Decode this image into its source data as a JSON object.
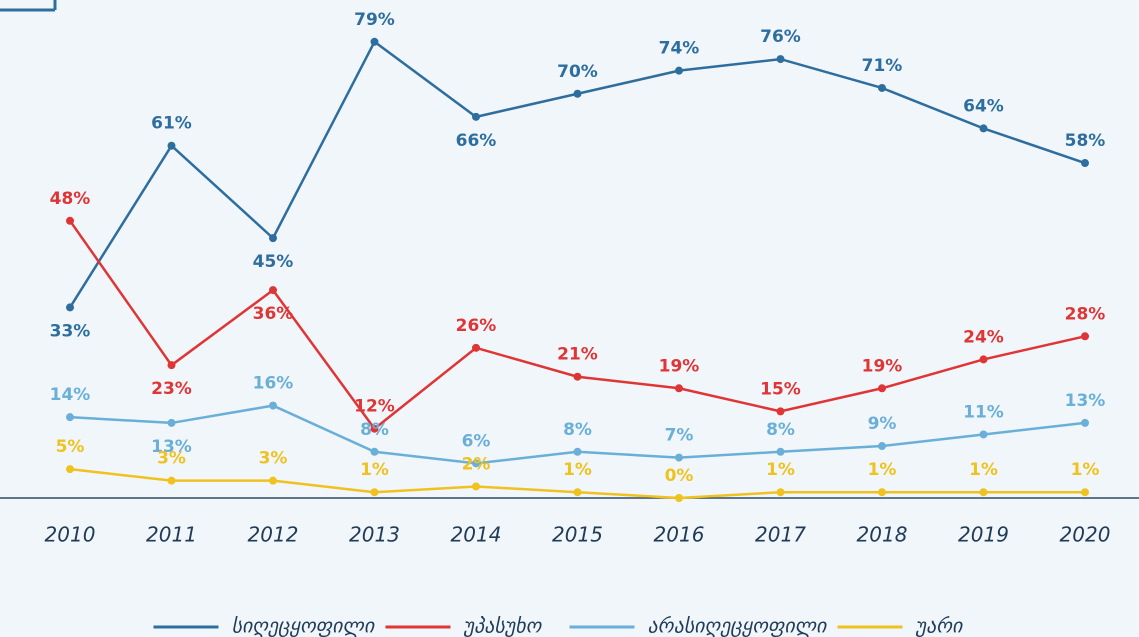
{
  "chart_data": {
    "type": "line",
    "categories": [
      "2010",
      "2011",
      "2012",
      "2013",
      "2014",
      "2015",
      "2016",
      "2017",
      "2018",
      "2019",
      "2020"
    ],
    "ylim": [
      0,
      80
    ],
    "series": [
      {
        "name": "სიღეცყოფილი",
        "color": "#2e6e9e",
        "values": [
          33,
          61,
          45,
          79,
          66,
          70,
          74,
          76,
          71,
          64,
          58
        ],
        "value_labels": [
          "33%",
          "61%",
          "45%",
          "79%",
          "66%",
          "70%",
          "74%",
          "76%",
          "71%",
          "64%",
          "58%"
        ]
      },
      {
        "name": "უპასუხო",
        "color": "#e03535",
        "values": [
          48,
          23,
          36,
          12,
          26,
          21,
          19,
          15,
          19,
          24,
          28
        ],
        "value_labels": [
          "48%",
          "23%",
          "36%",
          "12%",
          "26%",
          "21%",
          "19%",
          "15%",
          "19%",
          "24%",
          "28%"
        ]
      },
      {
        "name": "არასიღეცყოფილი",
        "color": "#6aafd8",
        "values": [
          14,
          13,
          16,
          8,
          6,
          8,
          7,
          8,
          9,
          11,
          13
        ],
        "value_labels": [
          "14%",
          "13%",
          "16%",
          "8%",
          "6%",
          "8%",
          "7%",
          "8%",
          "9%",
          "11%",
          "13%"
        ]
      },
      {
        "name": "უარი",
        "color": "#efc21e",
        "values": [
          5,
          3,
          3,
          1,
          2,
          1,
          0,
          1,
          1,
          1,
          1
        ],
        "value_labels": [
          "5%",
          "3%",
          "3%",
          "1%",
          "2%",
          "1%",
          "0%",
          "1%",
          "1%",
          "1%",
          "1%"
        ]
      }
    ]
  }
}
